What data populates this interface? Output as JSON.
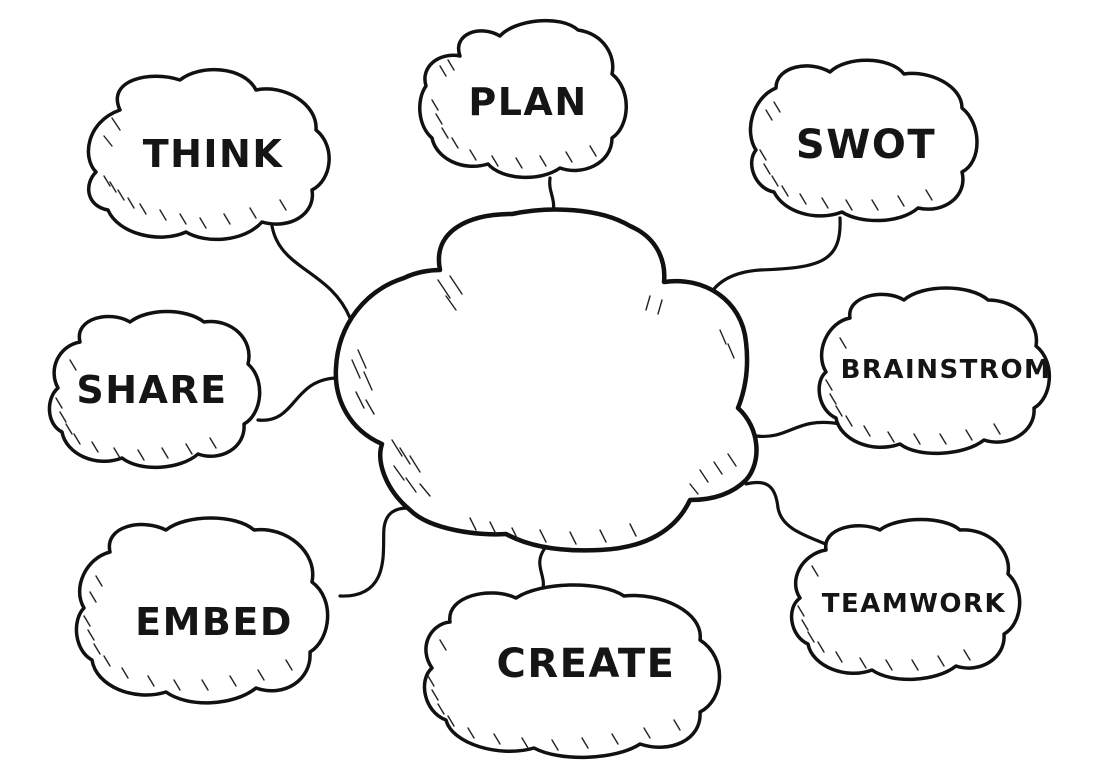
{
  "diagram": {
    "center": {
      "label": ""
    },
    "nodes": [
      {
        "id": "think",
        "label": "THINK"
      },
      {
        "id": "plan",
        "label": "PLAN"
      },
      {
        "id": "swot",
        "label": "SWOT"
      },
      {
        "id": "share",
        "label": "SHARE"
      },
      {
        "id": "brainstrom",
        "label": "BRAINSTROM"
      },
      {
        "id": "embed",
        "label": "EMBED"
      },
      {
        "id": "create",
        "label": "CREATE"
      },
      {
        "id": "teamwork",
        "label": "TEAMWORK"
      }
    ],
    "colors": {
      "stroke": "#111111",
      "fill": "#ffffff",
      "text": "#151515"
    }
  }
}
